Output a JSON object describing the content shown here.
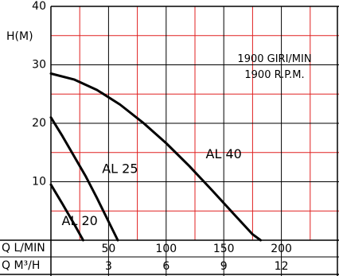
{
  "chart_data": {
    "type": "line",
    "title": "",
    "annotations": [
      "1900 GIRI/MIN",
      "1900 R.P.M."
    ],
    "ylabel": "H(M)",
    "xlabel_primary": "Q L/MIN",
    "xlabel_secondary": "Q M³/H",
    "ylim": [
      0,
      40
    ],
    "xlim": [
      0,
      250
    ],
    "x_ticks": [
      50,
      100,
      150,
      200
    ],
    "x2_ticks": [
      "3",
      "6",
      "9",
      "12"
    ],
    "y_ticks": [
      10,
      20,
      30,
      40
    ],
    "grid": true,
    "series": [
      {
        "name": "AL 40",
        "x": [
          0,
          20,
          40,
          60,
          80,
          100,
          120,
          140,
          160,
          175,
          182
        ],
        "y": [
          28.5,
          27.5,
          25.7,
          23.2,
          20.1,
          16.6,
          12.7,
          8.5,
          4.2,
          1.0,
          0
        ]
      },
      {
        "name": "AL 25",
        "x": [
          0,
          10,
          20,
          30,
          40,
          50,
          58
        ],
        "y": [
          21,
          17.8,
          14.4,
          11,
          7.2,
          3.2,
          0
        ]
      },
      {
        "name": "AL 20",
        "x": [
          0,
          10,
          20,
          28
        ],
        "y": [
          9.5,
          6.2,
          2.8,
          0
        ]
      }
    ]
  }
}
